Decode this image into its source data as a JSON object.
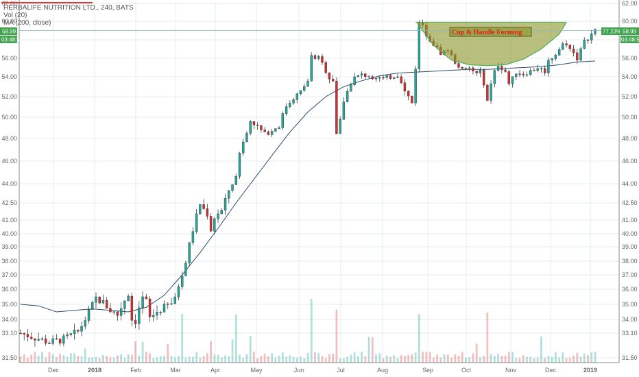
{
  "header": {
    "title": "HERBALIFE NUTRITION LTD., 240, BATS",
    "vol_label": "Vol (20)",
    "ma_label": "MA (200, close)"
  },
  "chart_data": {
    "type": "candlestick",
    "y_ticks": [
      "62.00",
      "60.00",
      "58.00",
      "56.00",
      "54.00",
      "52.00",
      "50.00",
      "48.00",
      "46.00",
      "44.00",
      "42.50",
      "41.00",
      "40.00",
      "39.00",
      "38.00",
      "37.00",
      "36.00",
      "35.00",
      "34.00",
      "33.10",
      "31.50"
    ],
    "x_ticks": [
      "Dec",
      "2018",
      "Feb",
      "Mar",
      "Apr",
      "May",
      "Jun",
      "Jul",
      "Aug",
      "Sep",
      "Oct",
      "Nov",
      "Dec",
      "2019"
    ],
    "bold_x_ticks": [
      "2018",
      "2019"
    ],
    "annotation": "Cup & Handle Forming",
    "price_badge": {
      "left_price": "58.99",
      "left_time": "03:48:54",
      "right_pct": "77.23%",
      "right_price": "58.99",
      "right_time": "03:48:54"
    },
    "last_price": 58.99,
    "price_path": [
      [
        0,
        33.1
      ],
      [
        4,
        32.8
      ],
      [
        8,
        32.5
      ],
      [
        12,
        32.7
      ],
      [
        16,
        33.2
      ],
      [
        18,
        34.0
      ],
      [
        21,
        35.4
      ],
      [
        23,
        35.1
      ],
      [
        25,
        34.6
      ],
      [
        27,
        34.3
      ],
      [
        29,
        35.3
      ],
      [
        30,
        35.7
      ],
      [
        31,
        34.0
      ],
      [
        32,
        33.9
      ],
      [
        33,
        34.8
      ],
      [
        34,
        35.4
      ],
      [
        35,
        35.2
      ],
      [
        36,
        34.1
      ],
      [
        38,
        34.5
      ],
      [
        40,
        34.8
      ],
      [
        42,
        35.1
      ],
      [
        43,
        35.3
      ],
      [
        44,
        36.3
      ],
      [
        46,
        38.0
      ],
      [
        48,
        40.3
      ],
      [
        50,
        42.4
      ],
      [
        52,
        41.5
      ],
      [
        53,
        40.3
      ],
      [
        54,
        41.2
      ],
      [
        55,
        41.6
      ],
      [
        56,
        41.8
      ],
      [
        58,
        43.5
      ],
      [
        60,
        44.6
      ],
      [
        61,
        46.8
      ],
      [
        63,
        48.5
      ],
      [
        64,
        49.8
      ],
      [
        66,
        49.1
      ],
      [
        68,
        48.4
      ],
      [
        70,
        48.8
      ],
      [
        72,
        49.2
      ],
      [
        73,
        50.2
      ],
      [
        74,
        51.1
      ],
      [
        76,
        51.9
      ],
      [
        78,
        52.5
      ],
      [
        80,
        53.6
      ],
      [
        81,
        56.2
      ],
      [
        83,
        56.0
      ],
      [
        84,
        55.4
      ],
      [
        86,
        53.9
      ],
      [
        87,
        53.7
      ],
      [
        88,
        48.5
      ],
      [
        89,
        49.6
      ],
      [
        90,
        51.6
      ],
      [
        91,
        52.5
      ],
      [
        92,
        53.4
      ],
      [
        93,
        53.9
      ],
      [
        95,
        54.2
      ],
      [
        97,
        54.1
      ],
      [
        99,
        54.0
      ],
      [
        101,
        53.8
      ],
      [
        103,
        54.0
      ],
      [
        105,
        54.2
      ],
      [
        106,
        53.6
      ],
      [
        107,
        52.5
      ],
      [
        108,
        52.0
      ],
      [
        109,
        51.4
      ],
      [
        110,
        55.0
      ],
      [
        111,
        59.8
      ],
      [
        112,
        59.4
      ],
      [
        113,
        58.6
      ],
      [
        115,
        57.5
      ],
      [
        117,
        56.6
      ],
      [
        119,
        56.9
      ],
      [
        121,
        55.6
      ],
      [
        123,
        54.7
      ],
      [
        125,
        54.9
      ],
      [
        127,
        54.3
      ],
      [
        128,
        54.5
      ],
      [
        129,
        53.4
      ],
      [
        130,
        51.6
      ],
      [
        131,
        53.2
      ],
      [
        132,
        54.5
      ],
      [
        133,
        55.3
      ],
      [
        135,
        54.6
      ],
      [
        136,
        53.3
      ],
      [
        137,
        53.8
      ],
      [
        138,
        54.5
      ],
      [
        140,
        54.3
      ],
      [
        142,
        54.6
      ],
      [
        144,
        55.0
      ],
      [
        146,
        54.6
      ],
      [
        147,
        55.7
      ],
      [
        149,
        56.5
      ],
      [
        151,
        57.5
      ],
      [
        153,
        57.2
      ],
      [
        155,
        56.0
      ],
      [
        157,
        57.8
      ],
      [
        159,
        58.6
      ],
      [
        160,
        58.99
      ]
    ],
    "ma_path": [
      [
        0,
        35.0
      ],
      [
        5,
        34.9
      ],
      [
        10,
        34.5
      ],
      [
        15,
        34.6
      ],
      [
        20,
        34.7
      ],
      [
        25,
        34.6
      ],
      [
        30,
        34.5
      ],
      [
        35,
        34.8
      ],
      [
        40,
        35.6
      ],
      [
        45,
        37.0
      ],
      [
        50,
        38.6
      ],
      [
        55,
        40.4
      ],
      [
        60,
        42.5
      ],
      [
        65,
        44.4
      ],
      [
        70,
        46.5
      ],
      [
        75,
        48.6
      ],
      [
        80,
        50.5
      ],
      [
        85,
        52.0
      ],
      [
        90,
        53.0
      ],
      [
        95,
        53.6
      ],
      [
        100,
        54.1
      ],
      [
        105,
        54.4
      ],
      [
        110,
        54.5
      ],
      [
        115,
        54.6
      ],
      [
        120,
        54.7
      ],
      [
        125,
        54.8
      ],
      [
        130,
        54.8
      ],
      [
        135,
        54.9
      ],
      [
        140,
        55.0
      ],
      [
        145,
        55.1
      ],
      [
        150,
        55.3
      ],
      [
        155,
        55.6
      ],
      [
        160,
        55.7
      ]
    ],
    "cup": [
      [
        110,
        59.9
      ],
      [
        111,
        59.5
      ],
      [
        115,
        57.4
      ],
      [
        120,
        55.8
      ],
      [
        125,
        55.3
      ],
      [
        130,
        55.2
      ],
      [
        135,
        55.3
      ],
      [
        140,
        55.9
      ],
      [
        145,
        57.0
      ],
      [
        150,
        58.6
      ],
      [
        152,
        59.9
      ]
    ]
  }
}
